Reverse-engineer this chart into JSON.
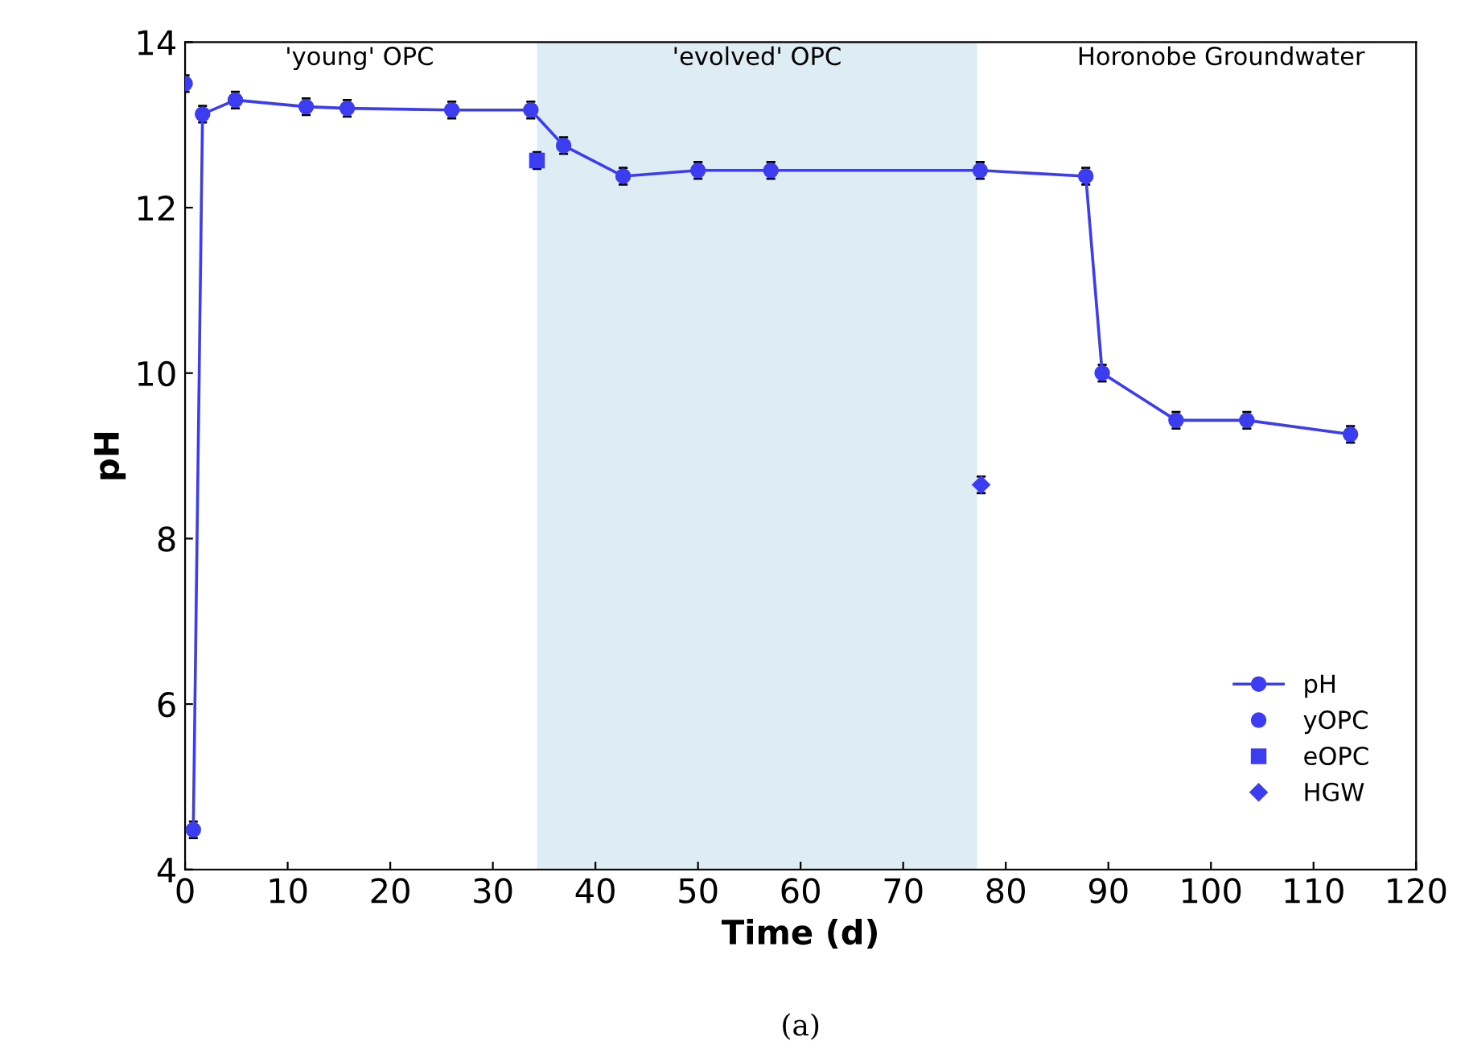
{
  "chart_data": {
    "type": "scatter",
    "xlabel": "Time (d)",
    "ylabel": "pH",
    "xlim": [
      0,
      120
    ],
    "xticks": [
      0,
      10,
      20,
      30,
      40,
      50,
      60,
      70,
      80,
      90,
      100,
      110,
      120
    ],
    "ylim": [
      4,
      14
    ],
    "yticks": [
      4,
      6,
      8,
      10,
      12,
      14
    ],
    "series": [
      {
        "name": "pH",
        "type": "line",
        "marker": "circle",
        "color": "#3c3cf0",
        "x": [
          0.8,
          1.7,
          4.9,
          11.8,
          15.8,
          26,
          33.7,
          36.9,
          42.7,
          50,
          57.1,
          77.5,
          87.8,
          89.4,
          96.6,
          103.5,
          113.6
        ],
        "values": [
          4.48,
          13.13,
          13.3,
          13.22,
          13.2,
          13.18,
          13.18,
          12.75,
          12.38,
          12.45,
          12.45,
          12.45,
          12.38,
          10.0,
          9.43,
          9.43,
          9.26
        ],
        "errors": [
          0.1,
          0.1,
          0.1,
          0.1,
          0.1,
          0.1,
          0.1,
          0.1,
          0.1,
          0.1,
          0.1,
          0.1,
          0.1,
          0.1,
          0.1,
          0.1,
          0.1
        ]
      },
      {
        "name": "yOPC",
        "marker": "circle",
        "color": "#3c3cf0",
        "x": [
          0
        ],
        "values": [
          13.5
        ],
        "errors": [
          0.1
        ]
      },
      {
        "name": "eOPC",
        "marker": "square",
        "color": "#3c3cf0",
        "x": [
          34.3
        ],
        "values": [
          12.57
        ],
        "errors": [
          0.1
        ]
      },
      {
        "name": "HGW",
        "marker": "diamond",
        "color": "#3c3cf0",
        "x": [
          77.6
        ],
        "values": [
          8.65
        ],
        "errors": [
          0.1
        ]
      }
    ],
    "bands": [
      {
        "axis": "x",
        "from": 34.3,
        "to": 77.2,
        "label": "'evolved' OPC",
        "color": "#deedf3"
      }
    ],
    "annotations": [
      "'young' OPC",
      "Horonobe Groundwater",
      "(a)"
    ],
    "legend": "bottom right",
    "grid": false
  }
}
